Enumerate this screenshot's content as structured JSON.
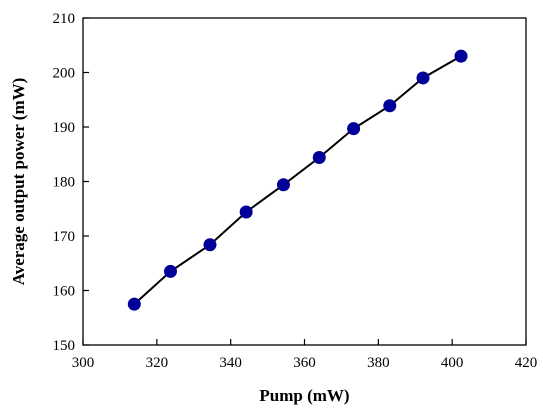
{
  "chart_data": {
    "type": "line",
    "xlabel": "Pump (mW)",
    "ylabel": "Average output power (mW)",
    "xlim": [
      300,
      420
    ],
    "ylim": [
      150,
      210
    ],
    "x_ticks": [
      300,
      320,
      340,
      360,
      380,
      400,
      420
    ],
    "y_ticks": [
      150,
      160,
      170,
      180,
      190,
      200,
      210
    ],
    "grid": false,
    "legend": "none",
    "series": [
      {
        "x": [
          313.9,
          323.7,
          334.4,
          344.2,
          354.3,
          364.0,
          373.3,
          383.1,
          392.1,
          402.4
        ],
        "y": [
          157.5,
          163.5,
          168.4,
          174.4,
          179.4,
          184.4,
          189.7,
          193.9,
          199.0,
          203.0
        ],
        "marker_color": "#000099",
        "line_color": "#000000"
      }
    ]
  }
}
